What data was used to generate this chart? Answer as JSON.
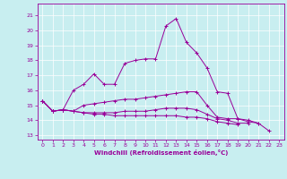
{
  "title": "",
  "xlabel": "Windchill (Refroidissement éolien,°C)",
  "ylabel": "",
  "background_color": "#c8eef0",
  "line_color": "#990099",
  "grid_color": "#ffffff",
  "xlim": [
    -0.5,
    23.5
  ],
  "ylim": [
    12.7,
    21.8
  ],
  "yticks": [
    13,
    14,
    15,
    16,
    17,
    18,
    19,
    20,
    21
  ],
  "xticks": [
    0,
    1,
    2,
    3,
    4,
    5,
    6,
    7,
    8,
    9,
    10,
    11,
    12,
    13,
    14,
    15,
    16,
    17,
    18,
    19,
    20,
    21,
    22,
    23
  ],
  "lines": [
    [
      15.3,
      14.6,
      14.7,
      16.0,
      16.4,
      17.1,
      16.4,
      16.4,
      17.8,
      18.0,
      18.1,
      18.1,
      20.3,
      20.8,
      19.2,
      18.5,
      17.5,
      15.9,
      15.8,
      14.1,
      14.0,
      13.8,
      13.3,
      null
    ],
    [
      15.3,
      14.6,
      14.7,
      14.6,
      15.0,
      15.1,
      15.2,
      15.3,
      15.4,
      15.4,
      15.5,
      15.6,
      15.7,
      15.8,
      15.9,
      15.9,
      15.0,
      14.2,
      14.1,
      14.1,
      13.9,
      13.8,
      null,
      null
    ],
    [
      15.3,
      14.6,
      14.7,
      14.6,
      14.5,
      14.5,
      14.5,
      14.5,
      14.6,
      14.6,
      14.6,
      14.7,
      14.8,
      14.8,
      14.8,
      14.7,
      14.4,
      14.1,
      14.0,
      13.8,
      13.8,
      null,
      null,
      null
    ],
    [
      15.3,
      14.6,
      14.7,
      14.6,
      14.5,
      14.4,
      14.4,
      14.3,
      14.3,
      14.3,
      14.3,
      14.3,
      14.3,
      14.3,
      14.2,
      14.2,
      14.1,
      13.9,
      13.8,
      13.7,
      null,
      null,
      null,
      null
    ]
  ]
}
